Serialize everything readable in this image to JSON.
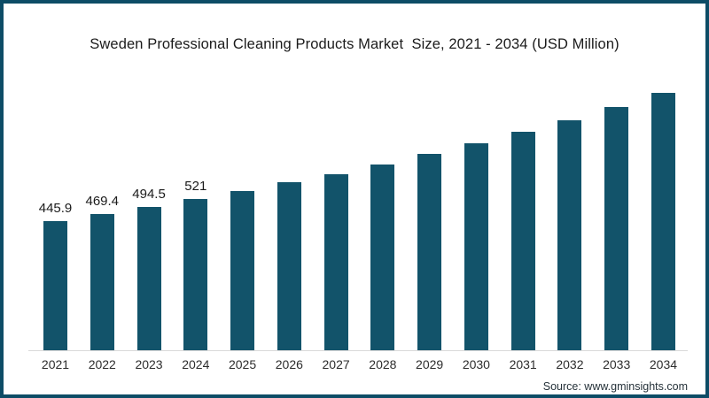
{
  "title": "Sweden Professional Cleaning Products Market  Size, 2021 - 2034 (USD Million)",
  "source": "Source: www.gminsights.com",
  "colors": {
    "bar": "#12536a",
    "frame": "#0d4c66",
    "axis_line": "#d9d9d9"
  },
  "chart_data": {
    "type": "bar",
    "title": "Sweden Professional Cleaning Products Market  Size, 2021 - 2034 (USD Million)",
    "categories": [
      "2021",
      "2022",
      "2023",
      "2024",
      "2025",
      "2026",
      "2027",
      "2028",
      "2029",
      "2030",
      "2031",
      "2032",
      "2033",
      "2034"
    ],
    "values": [
      445.9,
      469.4,
      494.5,
      521,
      550,
      578,
      607,
      641,
      676,
      713,
      752,
      794,
      838,
      888
    ],
    "data_labels": [
      "445.9",
      "469.4",
      "494.5",
      "521",
      "",
      "",
      "",
      "",
      "",
      "",
      "",
      "",
      "",
      ""
    ],
    "xlabel": "",
    "ylabel": "",
    "ylim": [
      0,
      1000
    ],
    "grid": false,
    "legend": false,
    "bar_color": "#12536a",
    "unlabeled_values_estimated": true
  }
}
